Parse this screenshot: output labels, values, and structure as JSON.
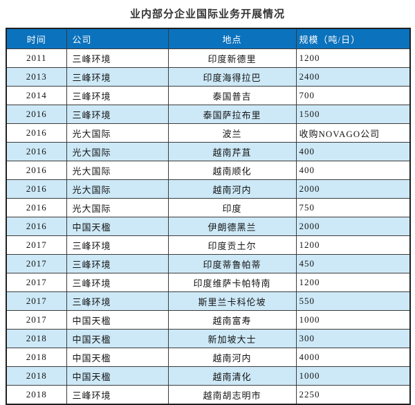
{
  "title": "业内部分企业国际业务开展情况",
  "colors": {
    "header_bg": "#0b72bd",
    "header_text": "#ffffff",
    "row_bg": "#ffffff",
    "row_alt_bg": "#cde9f7",
    "border_outer": "#1f1f1f",
    "border_inner": "#3a3a3a",
    "title_text": "#333333",
    "cell_text": "#141414"
  },
  "table": {
    "columns": [
      {
        "label": "时间",
        "align": "center"
      },
      {
        "label": "公司",
        "align": "left"
      },
      {
        "label": "地点",
        "align": "center"
      },
      {
        "label": "规模（吨/日）",
        "align": "left"
      }
    ],
    "rows": [
      [
        "2011",
        "三峰环境",
        "印度新德里",
        "1200"
      ],
      [
        "2013",
        "三峰环境",
        "印度海得拉巴",
        "2400"
      ],
      [
        "2014",
        "三峰环境",
        "泰国普吉",
        "700"
      ],
      [
        "2016",
        "三峰环境",
        "泰国萨拉布里",
        "1500"
      ],
      [
        "2016",
        "光大国际",
        "波兰",
        "收购NOVAGO公司"
      ],
      [
        "2016",
        "光大国际",
        "越南芹苴",
        "400"
      ],
      [
        "2016",
        "光大国际",
        "越南顺化",
        "400"
      ],
      [
        "2016",
        "光大国际",
        "越南河内",
        "2000"
      ],
      [
        "2016",
        "光大国际",
        "印度",
        "750"
      ],
      [
        "2016",
        "中国天楹",
        "伊朗德黑兰",
        "2000"
      ],
      [
        "2017",
        "三峰环境",
        "印度贡土尔",
        "1200"
      ],
      [
        "2017",
        "三峰环境",
        "印度蒂鲁帕蒂",
        "450"
      ],
      [
        "2017",
        "三峰环境",
        "印度维萨卡帕特南",
        "1200"
      ],
      [
        "2017",
        "三峰环境",
        "斯里兰卡科伦坡",
        "550"
      ],
      [
        "2017",
        "中国天楹",
        "越南富寿",
        "1000"
      ],
      [
        "2018",
        "中国天楹",
        "新加坡大士",
        "300"
      ],
      [
        "2018",
        "中国天楹",
        "越南河内",
        "4000"
      ],
      [
        "2018",
        "中国天楹",
        "越南清化",
        "1000"
      ],
      [
        "2018",
        "三峰环境",
        "越南胡志明市",
        "2250"
      ]
    ]
  }
}
